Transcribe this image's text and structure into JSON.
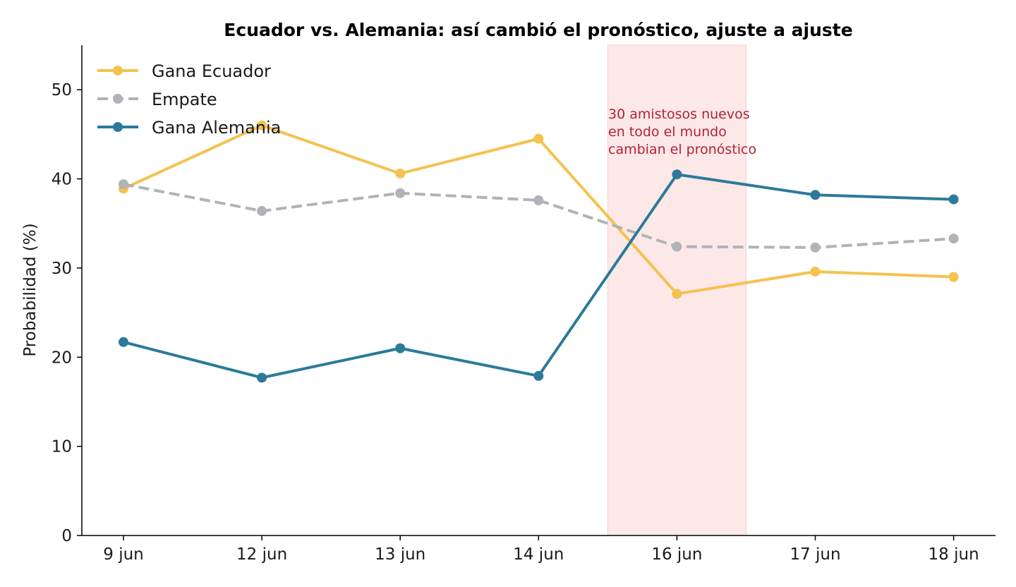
{
  "chart_data": {
    "type": "line",
    "title": "Ecuador vs. Alemania: así cambió el pronóstico, ajuste a ajuste",
    "xlabel": "",
    "ylabel": "Probabilidad (%)",
    "categories": [
      "9 jun",
      "12 jun",
      "13 jun",
      "14 jun",
      "16 jun",
      "17 jun",
      "18 jun"
    ],
    "ylim": [
      0,
      55
    ],
    "yticks": [
      0,
      10,
      20,
      30,
      40,
      50
    ],
    "grid": false,
    "legend_position": "top-left",
    "series": [
      {
        "name": "Gana Ecuador",
        "color": "#f5c24f",
        "dash": "solid",
        "values": [
          38.9,
          46.0,
          40.6,
          44.5,
          27.1,
          29.6,
          29.0
        ]
      },
      {
        "name": "Empate",
        "color": "#b0b3b7",
        "dash": "dashed",
        "values": [
          39.4,
          36.4,
          38.4,
          37.6,
          32.4,
          32.3,
          33.3
        ]
      },
      {
        "name": "Gana Alemania",
        "color": "#2c7a99",
        "dash": "solid",
        "values": [
          21.7,
          17.7,
          21.0,
          17.9,
          40.5,
          38.2,
          37.7
        ]
      }
    ],
    "highlight": {
      "from_index": 3.5,
      "to_index": 4.5,
      "color": "#fde8e8"
    },
    "annotation": {
      "lines": [
        "30 amistosos nuevos",
        "en todo el mundo",
        "cambian el pronóstico"
      ],
      "color": "#b22234"
    }
  }
}
